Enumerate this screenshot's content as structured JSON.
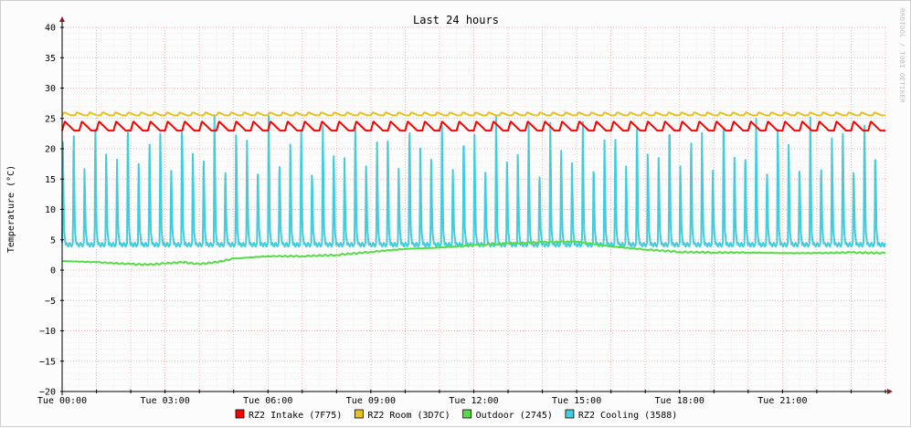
{
  "chart_data": {
    "type": "line",
    "title": "Last 24 hours",
    "ylabel": "Temperature (°C)",
    "xlabel": "",
    "ylim": [
      -20,
      40
    ],
    "yticks": [
      40,
      35,
      30,
      25,
      20,
      15,
      10,
      5,
      0,
      -5,
      -10,
      -15,
      -20
    ],
    "xlim": [
      0,
      24
    ],
    "x_unit": "hours since Tue 00:00",
    "xticks": [
      {
        "x": 0,
        "label": "Tue 00:00"
      },
      {
        "x": 3,
        "label": "Tue 03:00"
      },
      {
        "x": 6,
        "label": "Tue 06:00"
      },
      {
        "x": 9,
        "label": "Tue 09:00"
      },
      {
        "x": 12,
        "label": "Tue 12:00"
      },
      {
        "x": 15,
        "label": "Tue 15:00"
      },
      {
        "x": 18,
        "label": "Tue 18:00"
      },
      {
        "x": 21,
        "label": "Tue 21:00"
      }
    ],
    "grid": true,
    "watermark": "RRDTOOL / TOBI OETIKER",
    "legend_position": "bottom",
    "series": [
      {
        "name": "RZ2 Intake (7F75)",
        "color": "#ff0000",
        "pattern": "sawtooth",
        "min": 23,
        "max": 24.5,
        "cycles_per_day": 48
      },
      {
        "name": "RZ2 Room (3D7C)",
        "color": "#e8c020",
        "pattern": "sawtooth",
        "min": 25.5,
        "max": 26,
        "cycles_per_day": 64
      },
      {
        "name": "Outdoor (2745)",
        "color": "#55dd44",
        "pattern": "trend",
        "x": [
          0,
          1,
          2,
          2.5,
          3,
          3.5,
          4,
          4.5,
          5,
          6,
          7,
          8,
          9,
          10,
          11,
          12,
          13,
          14,
          15,
          16,
          17,
          18,
          19,
          20,
          21,
          22,
          23,
          24
        ],
        "values": [
          1.5,
          1.3,
          1.0,
          0.9,
          1.1,
          1.3,
          1.0,
          1.3,
          1.9,
          2.3,
          2.3,
          2.5,
          3.0,
          3.5,
          3.7,
          4.1,
          4.4,
          4.6,
          4.7,
          3.9,
          3.4,
          3.0,
          2.9,
          2.9,
          2.8,
          2.8,
          2.9,
          2.8
        ]
      },
      {
        "name": "RZ2 Cooling (3588)",
        "color": "#44ccdd",
        "pattern": "spikes",
        "baseline": 4.5,
        "peak_min": 17,
        "peak_max": 26,
        "cycles_per_day": 76
      }
    ]
  }
}
